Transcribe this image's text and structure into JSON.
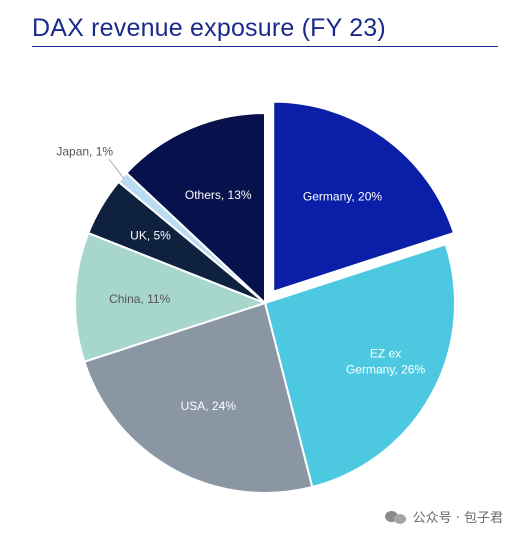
{
  "title": "DAX revenue exposure (FY 23)",
  "watermark": {
    "text": "公众号 · 包子君",
    "icon": "chat-bubbles-icon"
  },
  "chart_data": {
    "type": "pie",
    "title": "DAX revenue exposure (FY 23)",
    "slices": [
      {
        "label": "Germany, 20%",
        "name": "Germany",
        "value": 20,
        "color": "#0b1ea8",
        "exploded": true,
        "text_color": "#ffffff"
      },
      {
        "label": "EZ ex Germany, 26%",
        "name": "EZ ex Germany",
        "value": 26,
        "color": "#4cc9e0",
        "exploded": false,
        "text_color": "#ffffff"
      },
      {
        "label": "USA, 24%",
        "name": "USA",
        "value": 24,
        "color": "#8a96a3",
        "exploded": false,
        "text_color": "#ffffff"
      },
      {
        "label": "China, 11%",
        "name": "China",
        "value": 11,
        "color": "#a7d6cd",
        "exploded": false,
        "text_color": "#555555"
      },
      {
        "label": "UK, 5%",
        "name": "UK",
        "value": 5,
        "color": "#0e2240",
        "exploded": false,
        "text_color": "#ffffff"
      },
      {
        "label": "Japan, 1%",
        "name": "Japan",
        "value": 1,
        "color": "#b9dcf3",
        "exploded": false,
        "text_color": "#555555"
      },
      {
        "label": "Others, 13%",
        "name": "Others",
        "value": 13,
        "color": "#07124d",
        "exploded": false,
        "text_color": "#ffffff"
      }
    ]
  }
}
